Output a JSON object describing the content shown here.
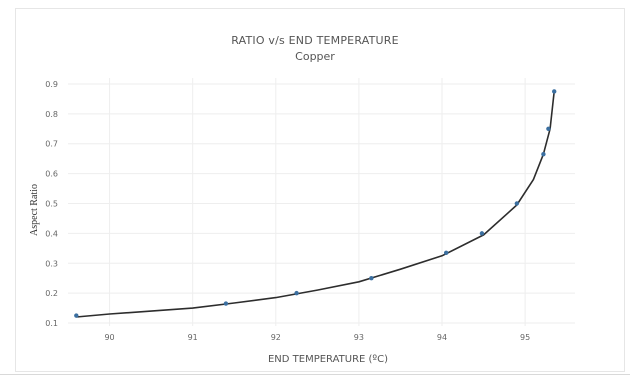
{
  "chart_data": {
    "type": "line",
    "title": "RATIO  v/s  END TEMPERATURE",
    "subtitle": "Copper",
    "xlabel": "END TEMPERATURE  (ºC)",
    "ylabel": "Aspect Ratio",
    "xlim": [
      89.5,
      95.6
    ],
    "ylim": [
      0.09,
      0.92
    ],
    "x_ticks": [
      "90",
      "91",
      "92",
      "93",
      "94",
      "95"
    ],
    "y_ticks": [
      "0.1",
      "0.2",
      "0.3",
      "0.4",
      "0.5",
      "0.6",
      "0.7",
      "0.8",
      "0.9"
    ],
    "grid": true,
    "colors": {
      "points": "#3b6fa0",
      "line": "#2d2d2d",
      "grid": "#eeeeee",
      "text": "#666666"
    },
    "series": [
      {
        "type": "scatter",
        "x": [
          89.6,
          91.4,
          92.25,
          93.15,
          94.05,
          94.48,
          94.9,
          95.22,
          95.28,
          95.35
        ],
        "y": [
          0.125,
          0.165,
          0.2,
          0.25,
          0.335,
          0.4,
          0.5,
          0.665,
          0.75,
          0.875
        ]
      },
      {
        "type": "line",
        "x": [
          89.6,
          90.0,
          90.5,
          91.0,
          91.5,
          92.0,
          92.5,
          93.0,
          93.5,
          94.0,
          94.5,
          94.9,
          95.1,
          95.22,
          95.3,
          95.35
        ],
        "y": [
          0.12,
          0.13,
          0.14,
          0.15,
          0.167,
          0.185,
          0.21,
          0.238,
          0.28,
          0.325,
          0.395,
          0.495,
          0.58,
          0.665,
          0.75,
          0.875
        ]
      }
    ]
  }
}
